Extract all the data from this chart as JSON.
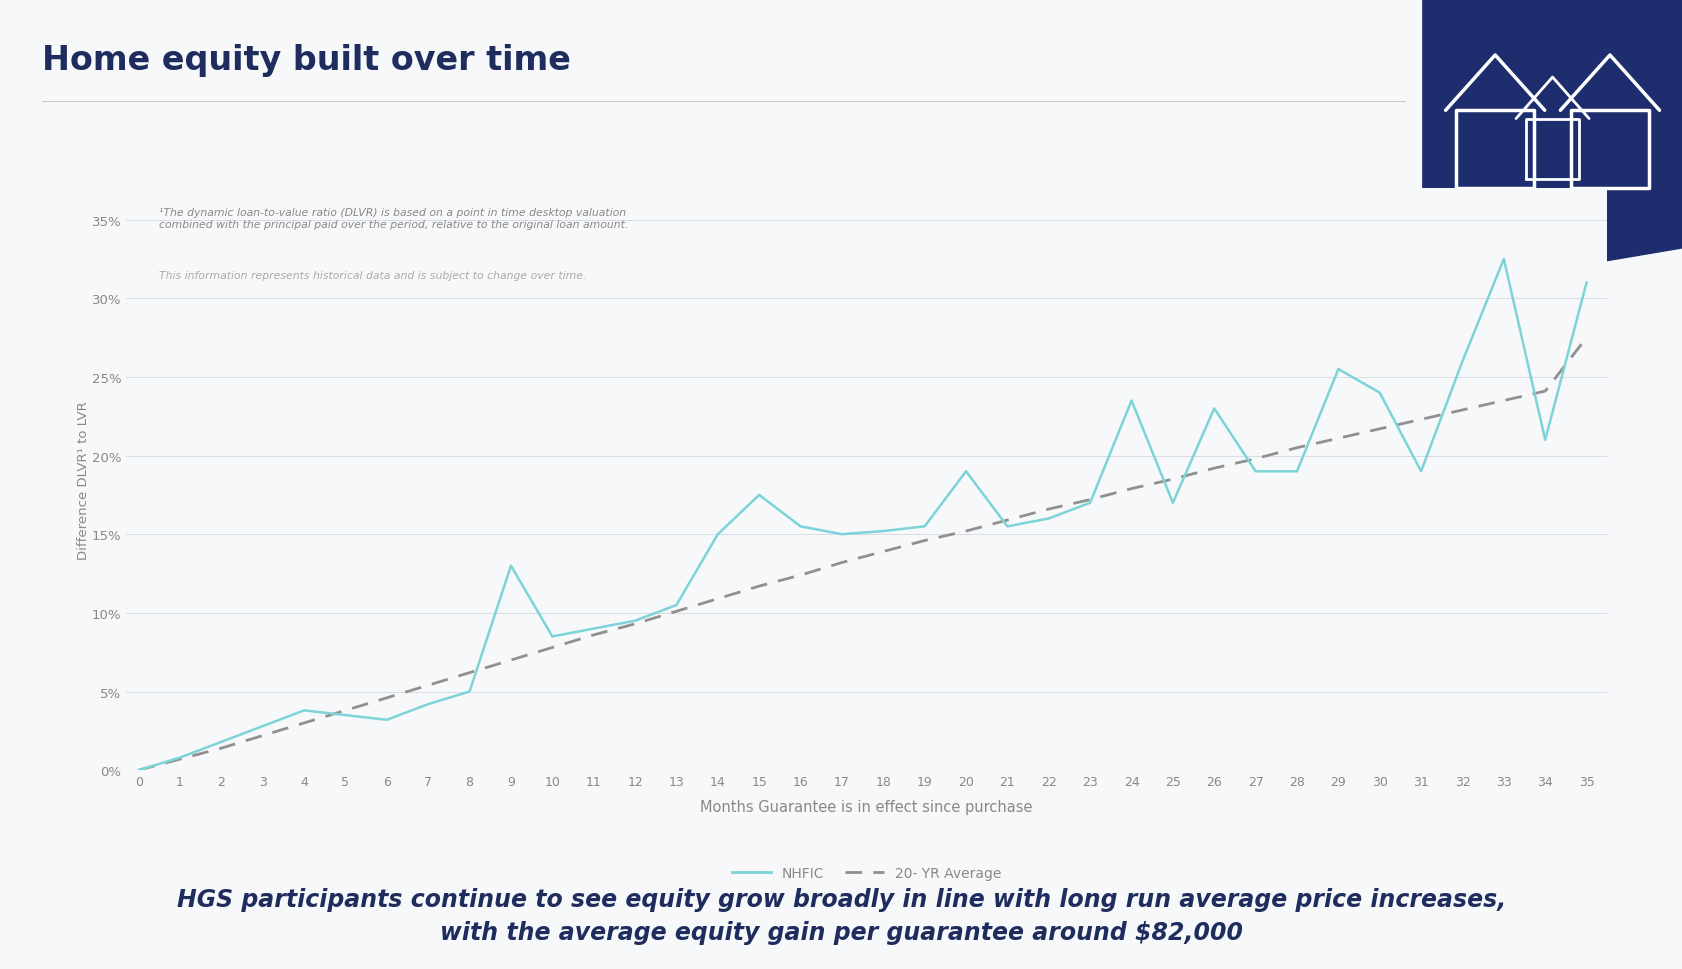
{
  "title": "Home equity built over time",
  "subtitle_line1": "¹The dynamic loan-to-value ratio (DLVR) is based on a point in time desktop valuation",
  "subtitle_line2": "combined with the principal paid over the period, relative to the original loan amount.",
  "subtitle_line3": "This information represents historical data and is subject to change over time.",
  "xlabel": "Months Guarantee is in effect since purchase",
  "ylabel": "Difference DLVR¹ to LVR",
  "footer_line1": "HGS participants continue to see equity grow broadly in line with long run average price increases,",
  "footer_line2": "with the average equity gain per guarantee around $82,000",
  "x_values": [
    0,
    1,
    2,
    3,
    4,
    5,
    6,
    7,
    8,
    9,
    10,
    11,
    12,
    13,
    14,
    15,
    16,
    17,
    18,
    19,
    20,
    21,
    22,
    23,
    24,
    25,
    26,
    27,
    28,
    29,
    30,
    31,
    32,
    33,
    34,
    35
  ],
  "nhfic_values": [
    0.0,
    0.8,
    1.8,
    2.8,
    3.8,
    3.5,
    3.2,
    4.2,
    5.0,
    13.0,
    8.5,
    9.0,
    9.5,
    10.5,
    15.0,
    17.5,
    15.5,
    15.0,
    15.2,
    15.5,
    19.0,
    15.5,
    16.0,
    17.0,
    23.5,
    17.0,
    23.0,
    19.0,
    19.0,
    25.5,
    24.0,
    19.0,
    26.0,
    32.5,
    21.0,
    31.0
  ],
  "avg_values": [
    0.0,
    0.7,
    1.4,
    2.2,
    3.0,
    3.8,
    4.6,
    5.4,
    6.2,
    7.0,
    7.8,
    8.6,
    9.3,
    10.1,
    10.9,
    11.7,
    12.4,
    13.2,
    13.9,
    14.6,
    15.2,
    15.9,
    16.6,
    17.2,
    17.9,
    18.5,
    19.2,
    19.8,
    20.5,
    21.1,
    21.7,
    22.3,
    22.9,
    23.5,
    24.1,
    27.5
  ],
  "nhfic_color": "#7dd4d8",
  "avg_color": "#909090",
  "background_color": "#f7f8fa",
  "title_color": "#1e2d5e",
  "footer_color": "#1e2d5e",
  "grid_color": "#d8dde5",
  "tick_color": "#888888",
  "annotation_color1": "#888888",
  "annotation_color2": "#aaaaaa",
  "ylim": [
    0,
    37
  ],
  "yticks": [
    0,
    5,
    10,
    15,
    20,
    25,
    30,
    35
  ],
  "ytick_labels": [
    "0%",
    "5%",
    "10%",
    "15%",
    "20%",
    "25%",
    "30%",
    "35%"
  ],
  "xticks": [
    0,
    1,
    2,
    3,
    4,
    5,
    6,
    7,
    8,
    9,
    10,
    11,
    12,
    13,
    14,
    15,
    16,
    17,
    18,
    19,
    20,
    21,
    22,
    23,
    24,
    25,
    26,
    27,
    28,
    29,
    30,
    31,
    32,
    33,
    34,
    35
  ],
  "logo_bg_color": "#1e2d6e",
  "nhfic_legend_label": "NHFIC",
  "avg_legend_label": "20- YR Average",
  "line_color": "#cccccc"
}
